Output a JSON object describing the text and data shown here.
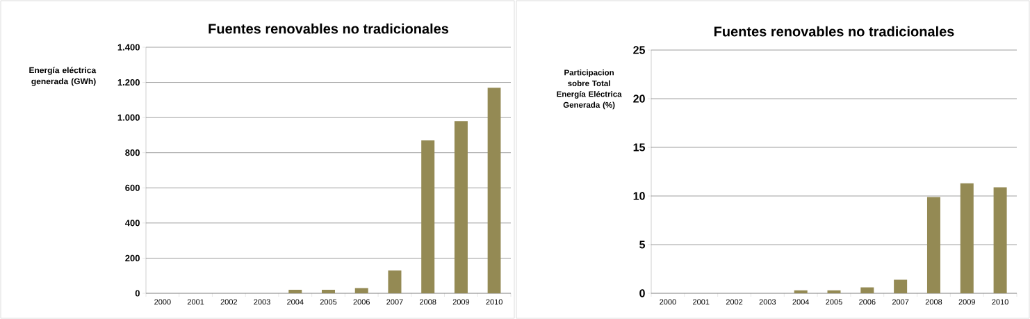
{
  "chart_data": [
    {
      "type": "bar",
      "title": "Fuentes renovables no tradicionales",
      "ylabel": "Energía eléctrica generada (GWh)",
      "categories": [
        "2000",
        "2001",
        "2002",
        "2003",
        "2004",
        "2005",
        "2006",
        "2007",
        "2008",
        "2009",
        "2010"
      ],
      "values": [
        0,
        0,
        0,
        0,
        20,
        20,
        30,
        130,
        870,
        980,
        1170
      ],
      "color": "#948a54",
      "ylim": [
        0,
        1400
      ],
      "yticks": [
        0,
        200,
        400,
        600,
        800,
        {
          "value": 1000,
          "label": "1.000"
        },
        {
          "value": 1200,
          "label": "1.200"
        },
        {
          "value": 1400,
          "label": "1.400"
        }
      ],
      "grid": "y"
    },
    {
      "type": "bar",
      "title": "Fuentes renovables no tradicionales",
      "ylabel": "Participacion sobre Total Energía Eléctrica Generada (%)",
      "categories": [
        "2000",
        "2001",
        "2002",
        "2003",
        "2004",
        "2005",
        "2006",
        "2007",
        "2008",
        "2009",
        "2010"
      ],
      "values": [
        0,
        0,
        0,
        0,
        0.3,
        0.3,
        0.6,
        1.4,
        9.9,
        11.3,
        10.9
      ],
      "color": "#948a54",
      "ylim": [
        0,
        25
      ],
      "yticks": [
        0,
        5,
        10,
        15,
        20,
        25
      ],
      "grid": "y"
    }
  ]
}
